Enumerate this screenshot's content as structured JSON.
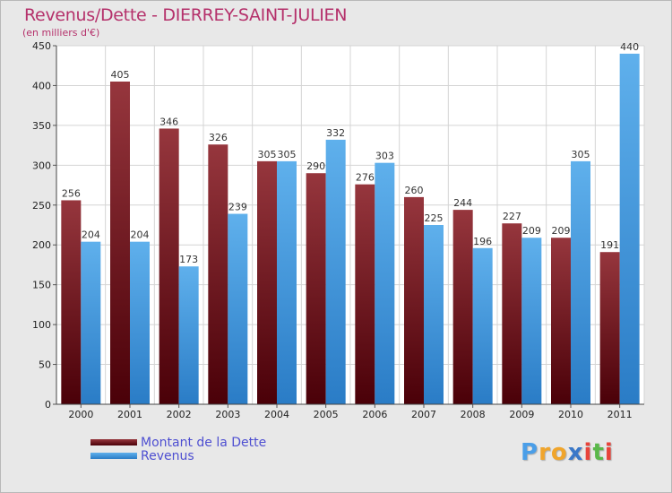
{
  "chart_data": {
    "type": "bar",
    "title": "Revenus/Dette - DIERREY-SAINT-JULIEN",
    "subtitle": "(en milliers d'€)",
    "categories": [
      "2000",
      "2001",
      "2002",
      "2003",
      "2004",
      "2005",
      "2006",
      "2007",
      "2008",
      "2009",
      "2010",
      "2011"
    ],
    "series": [
      {
        "name": "Montant de la Dette",
        "values": [
          256,
          405,
          346,
          326,
          305,
          290,
          276,
          260,
          244,
          227,
          209,
          191
        ]
      },
      {
        "name": "Revenus",
        "values": [
          204,
          204,
          173,
          239,
          305,
          332,
          303,
          225,
          196,
          209,
          305,
          440
        ]
      }
    ],
    "ylim": [
      0,
      450
    ],
    "yticks": [
      0,
      50,
      100,
      150,
      200,
      250,
      300,
      350,
      400,
      450
    ],
    "grid": true,
    "legend": "bottom-left",
    "colors": {
      "debt": "#7a1a22",
      "revenue": "#4aa3e6",
      "title": "#b5316b",
      "legend_text": "#4e4fd1"
    }
  },
  "logo": {
    "letters": [
      "P",
      "r",
      "o",
      "x",
      "i",
      "t",
      "i"
    ],
    "colors": [
      "#4a9ee8",
      "#f0a52c",
      "#f0a52c",
      "#3a78c8",
      "#e8433a",
      "#5ab84a",
      "#e8433a"
    ]
  }
}
